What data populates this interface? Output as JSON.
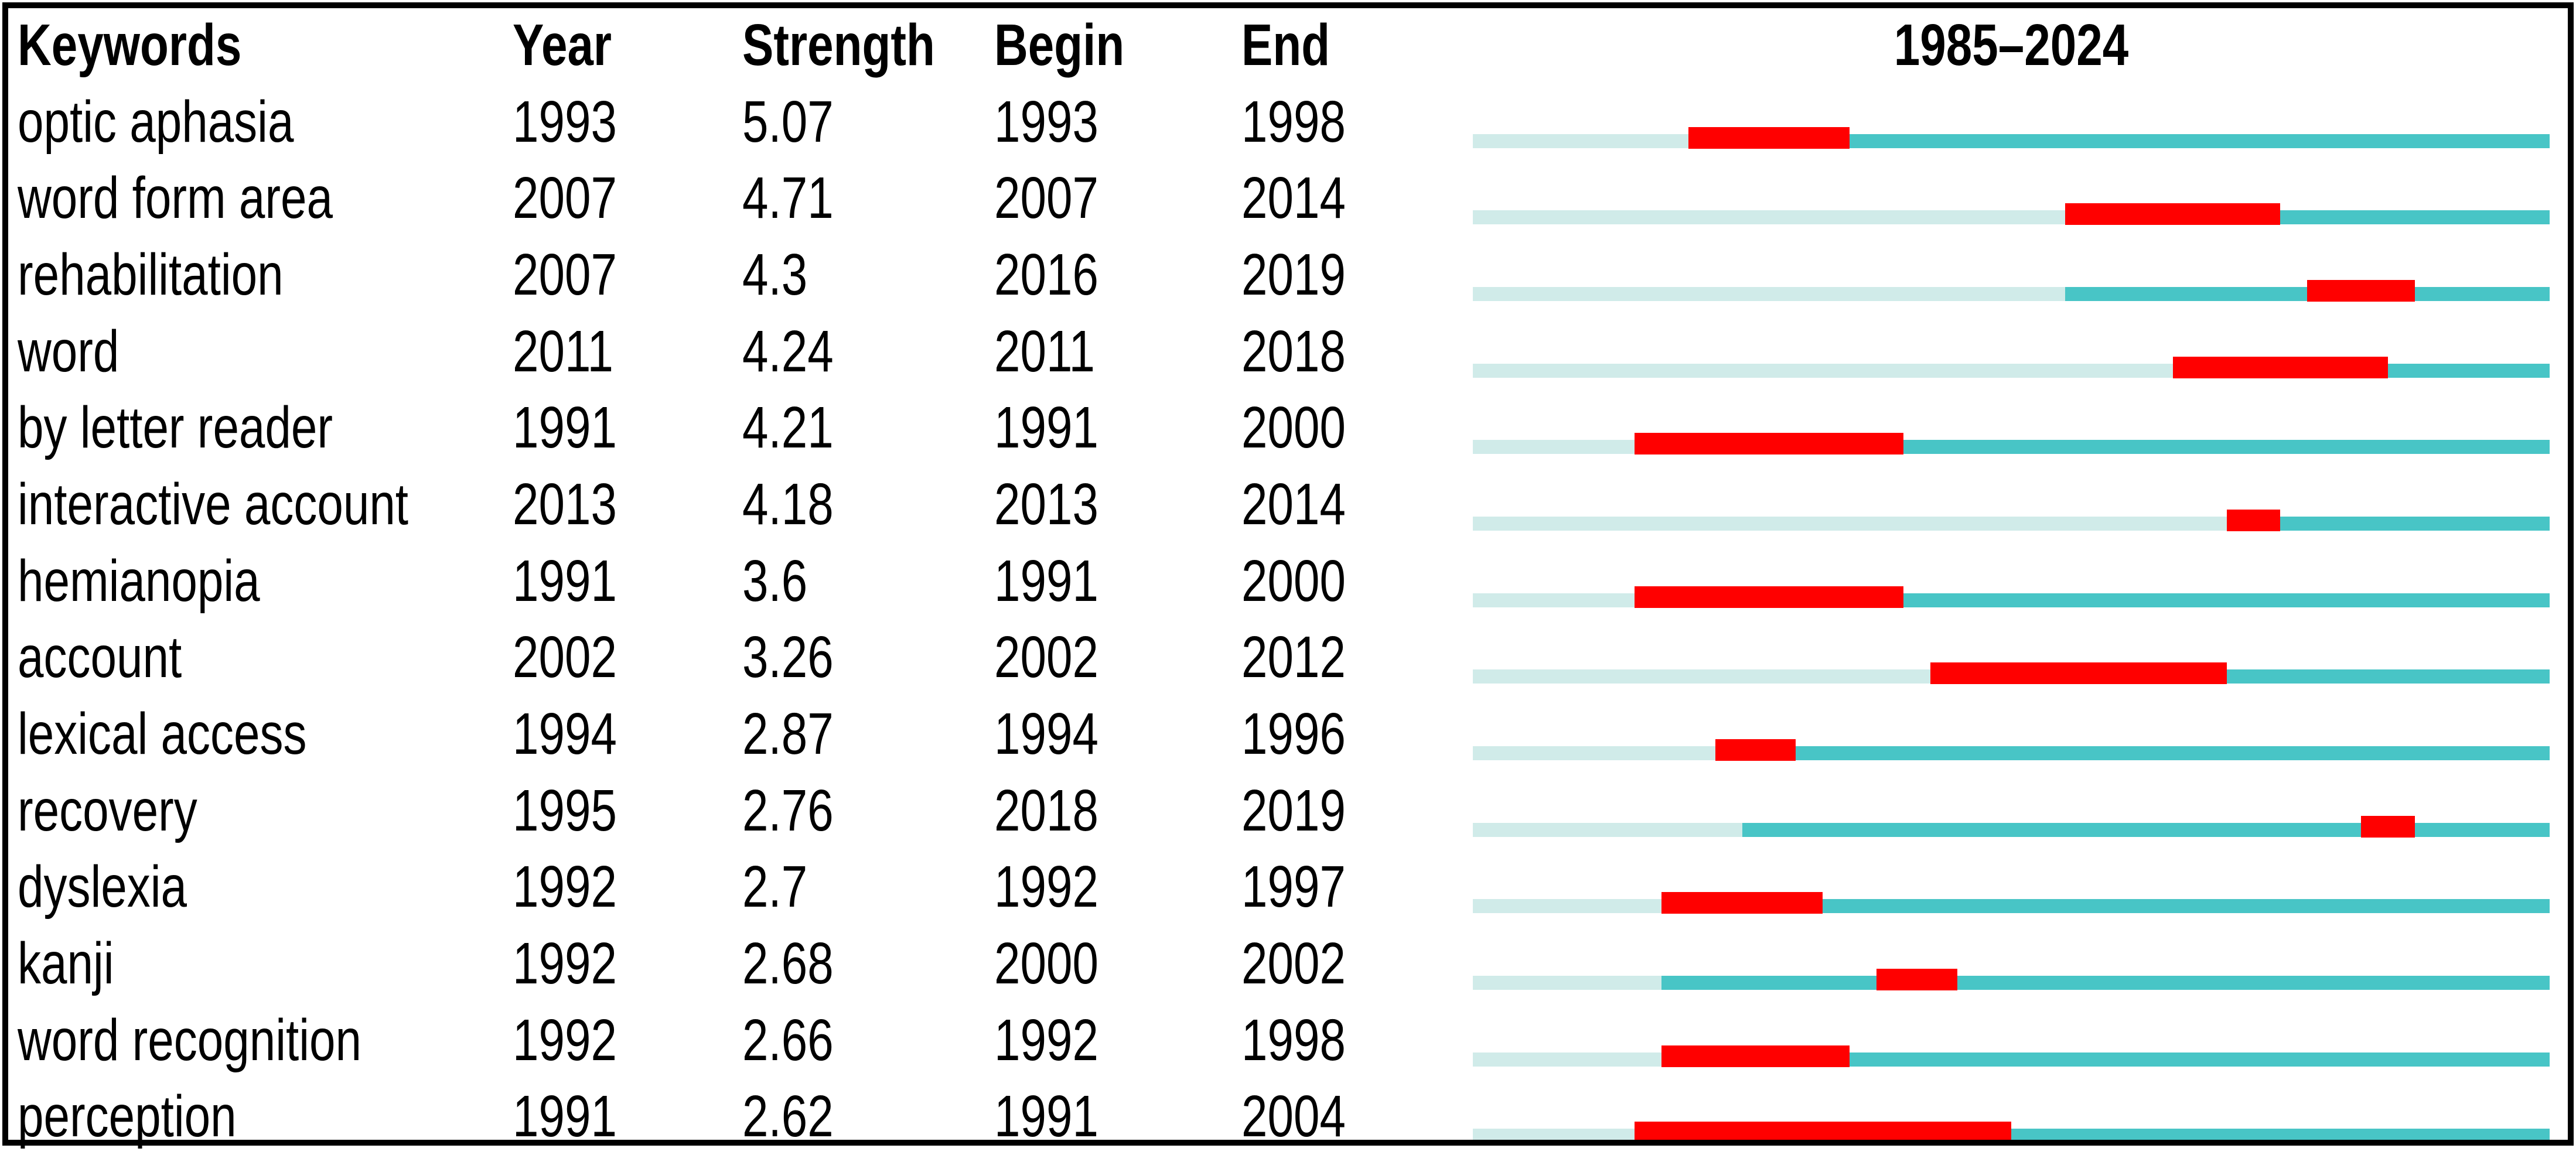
{
  "chart_data": {
    "type": "table",
    "columns": [
      "Keywords",
      "Year",
      "Strength",
      "Begin",
      "End",
      "1985–2024"
    ],
    "timeline": {
      "start_year": 1985,
      "end_year": 2024
    },
    "colors": {
      "pre_burst_bar": "#d0ebe9",
      "post_burst_bar": "#48c5c6",
      "burst_bar": "#ff0000",
      "text": "#000000",
      "border": "#000000"
    },
    "legend_note": "pale segment = before first appearance year; teal segment = keyword active period; red segment = burst interval Begin–End",
    "rows": [
      {
        "keyword": "optic aphasia",
        "year": "1993",
        "strength": "5.07",
        "begin": "1993",
        "end": "1998"
      },
      {
        "keyword": "word form area",
        "year": "2007",
        "strength": "4.71",
        "begin": "2007",
        "end": "2014"
      },
      {
        "keyword": "rehabilitation",
        "year": "2007",
        "strength": "4.3",
        "begin": "2016",
        "end": "2019"
      },
      {
        "keyword": "word",
        "year": "2011",
        "strength": "4.24",
        "begin": "2011",
        "end": "2018"
      },
      {
        "keyword": "by letter reader",
        "year": "1991",
        "strength": "4.21",
        "begin": "1991",
        "end": "2000"
      },
      {
        "keyword": "interactive account",
        "year": "2013",
        "strength": "4.18",
        "begin": "2013",
        "end": "2014"
      },
      {
        "keyword": "hemianopia",
        "year": "1991",
        "strength": "3.6",
        "begin": "1991",
        "end": "2000"
      },
      {
        "keyword": "account",
        "year": "2002",
        "strength": "3.26",
        "begin": "2002",
        "end": "2012"
      },
      {
        "keyword": "lexical access",
        "year": "1994",
        "strength": "2.87",
        "begin": "1994",
        "end": "1996"
      },
      {
        "keyword": "recovery",
        "year": "1995",
        "strength": "2.76",
        "begin": "2018",
        "end": "2019"
      },
      {
        "keyword": "dyslexia",
        "year": "1992",
        "strength": "2.7",
        "begin": "1992",
        "end": "1997"
      },
      {
        "keyword": "kanji",
        "year": "1992",
        "strength": "2.68",
        "begin": "2000",
        "end": "2002"
      },
      {
        "keyword": "word recognition",
        "year": "1992",
        "strength": "2.66",
        "begin": "1992",
        "end": "1998"
      },
      {
        "keyword": "perception",
        "year": "1991",
        "strength": "2.62",
        "begin": "1991",
        "end": "2004"
      }
    ]
  }
}
